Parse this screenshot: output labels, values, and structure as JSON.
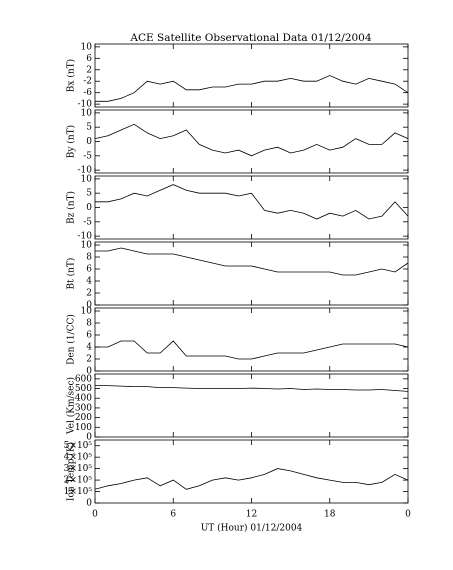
{
  "chart_data": [
    {
      "type": "line",
      "title": "ACE Satellite Observational Data   01/12/2004",
      "ylabel": "Bx (nT)",
      "x": [
        0,
        1,
        2,
        3,
        4,
        5,
        6,
        7,
        8,
        9,
        10,
        11,
        12,
        13,
        14,
        15,
        16,
        17,
        18,
        19,
        20,
        21,
        22,
        23,
        24
      ],
      "xlim": [
        0,
        24
      ],
      "xticks": [
        0,
        6,
        12,
        18,
        {
          "value": 24,
          "label": "0"
        }
      ],
      "ylim": [
        -11,
        11
      ],
      "yticks": [
        10,
        6,
        2,
        -2,
        -6,
        -10
      ],
      "color": "#000000",
      "values": [
        -9,
        -9,
        -8,
        -6,
        -2,
        -3,
        -2,
        -5,
        -5,
        -4,
        -4,
        -3,
        -3,
        -2,
        -2,
        -1,
        -2,
        -2,
        0,
        -2,
        -3,
        -1,
        -2,
        -3,
        -6
      ]
    },
    {
      "type": "line",
      "ylabel": "By (nT)",
      "x": [
        0,
        1,
        2,
        3,
        4,
        5,
        6,
        7,
        8,
        9,
        10,
        11,
        12,
        13,
        14,
        15,
        16,
        17,
        18,
        19,
        20,
        21,
        22,
        23,
        24
      ],
      "xlim": [
        0,
        24
      ],
      "xticks": [
        0,
        6,
        12,
        18,
        {
          "value": 24,
          "label": "0"
        }
      ],
      "ylim": [
        -11,
        11
      ],
      "yticks": [
        10,
        5,
        0,
        -5,
        -10
      ],
      "color": "#000000",
      "values": [
        1,
        2,
        4,
        6,
        3,
        1,
        2,
        4,
        -1,
        -3,
        -4,
        -3,
        -5,
        -3,
        -2,
        -4,
        -3,
        -1,
        -3,
        -2,
        1,
        -1,
        -1,
        3,
        1
      ]
    },
    {
      "type": "line",
      "ylabel": "Bz (nT)",
      "x": [
        0,
        1,
        2,
        3,
        4,
        5,
        6,
        7,
        8,
        9,
        10,
        11,
        12,
        13,
        14,
        15,
        16,
        17,
        18,
        19,
        20,
        21,
        22,
        23,
        24
      ],
      "xlim": [
        0,
        24
      ],
      "xticks": [
        0,
        6,
        12,
        18,
        {
          "value": 24,
          "label": "0"
        }
      ],
      "ylim": [
        -11,
        11
      ],
      "yticks": [
        10,
        5,
        0,
        -5,
        -10
      ],
      "color": "#000000",
      "values": [
        2,
        2,
        3,
        5,
        4,
        6,
        8,
        6,
        5,
        5,
        5,
        4,
        5,
        -1,
        -2,
        -1,
        -2,
        -4,
        -2,
        -3,
        -1,
        -4,
        -3,
        2,
        -3
      ]
    },
    {
      "type": "line",
      "ylabel": "Bt (nT)",
      "x": [
        0,
        1,
        2,
        3,
        4,
        5,
        6,
        7,
        8,
        9,
        10,
        11,
        12,
        13,
        14,
        15,
        16,
        17,
        18,
        19,
        20,
        21,
        22,
        23,
        24
      ],
      "xlim": [
        0,
        24
      ],
      "xticks": [
        0,
        6,
        12,
        18,
        {
          "value": 24,
          "label": "0"
        }
      ],
      "ylim": [
        0,
        10.5
      ],
      "yticks": [
        10,
        8,
        6,
        4,
        2,
        0
      ],
      "color": "#000000",
      "values": [
        9,
        9,
        9.5,
        9,
        8.5,
        8.5,
        8.5,
        8,
        7.5,
        7,
        6.5,
        6.5,
        6.5,
        6,
        5.5,
        5.5,
        5.5,
        5.5,
        5.5,
        5,
        5,
        5.5,
        6,
        5.5,
        7
      ]
    },
    {
      "type": "line",
      "ylabel": "Den (1/CC)",
      "x": [
        0,
        1,
        2,
        3,
        4,
        5,
        6,
        7,
        8,
        9,
        10,
        11,
        12,
        13,
        14,
        15,
        16,
        17,
        18,
        19,
        20,
        21,
        22,
        23,
        24
      ],
      "xlim": [
        0,
        24
      ],
      "xticks": [
        0,
        6,
        12,
        18,
        {
          "value": 24,
          "label": "0"
        }
      ],
      "ylim": [
        0,
        10.5
      ],
      "yticks": [
        10,
        8,
        6,
        4,
        2,
        0
      ],
      "color": "#000000",
      "values": [
        4,
        4,
        5,
        5,
        3,
        3,
        5,
        2.5,
        2.5,
        2.5,
        2.5,
        2,
        2,
        2.5,
        3,
        3,
        3,
        3.5,
        4,
        4.5,
        4.5,
        4.5,
        4.5,
        4.5,
        4
      ]
    },
    {
      "type": "line",
      "ylabel": "Vel (Km/sec)",
      "x": [
        0,
        1,
        2,
        3,
        4,
        5,
        6,
        7,
        8,
        9,
        10,
        11,
        12,
        13,
        14,
        15,
        16,
        17,
        18,
        19,
        20,
        21,
        22,
        23,
        24
      ],
      "xlim": [
        0,
        24
      ],
      "xticks": [
        0,
        6,
        12,
        18,
        {
          "value": 24,
          "label": "0"
        }
      ],
      "ylim": [
        0,
        650
      ],
      "yticks": [
        600,
        500,
        400,
        300,
        200,
        100,
        0
      ],
      "color": "#000000",
      "values": [
        530,
        530,
        525,
        520,
        520,
        510,
        510,
        505,
        500,
        500,
        500,
        500,
        505,
        500,
        495,
        500,
        490,
        495,
        490,
        490,
        485,
        485,
        490,
        480,
        470
      ]
    },
    {
      "type": "line",
      "ylabel": "Ion Temp (K)",
      "xlabel": "UT (Hour)   01/12/2004",
      "x": [
        0,
        1,
        2,
        3,
        4,
        5,
        6,
        7,
        8,
        9,
        10,
        11,
        12,
        13,
        14,
        15,
        16,
        17,
        18,
        19,
        20,
        21,
        22,
        23,
        24
      ],
      "xlim": [
        0,
        24
      ],
      "xticks": [
        0,
        6,
        12,
        18,
        {
          "value": 24,
          "label": "0"
        }
      ],
      "ylim": [
        0,
        550000
      ],
      "yticks": [
        {
          "value": 500000,
          "label": "5×10⁵"
        },
        {
          "value": 400000,
          "label": "4×10⁵"
        },
        {
          "value": 300000,
          "label": "3×10⁵"
        },
        {
          "value": 200000,
          "label": "2×10⁵"
        },
        {
          "value": 100000,
          "label": "1×10⁵"
        },
        0
      ],
      "color": "#000000",
      "values": [
        120000,
        150000,
        170000,
        200000,
        220000,
        150000,
        200000,
        120000,
        150000,
        200000,
        220000,
        200000,
        220000,
        250000,
        300000,
        280000,
        250000,
        220000,
        200000,
        180000,
        180000,
        160000,
        180000,
        250000,
        200000
      ]
    }
  ]
}
